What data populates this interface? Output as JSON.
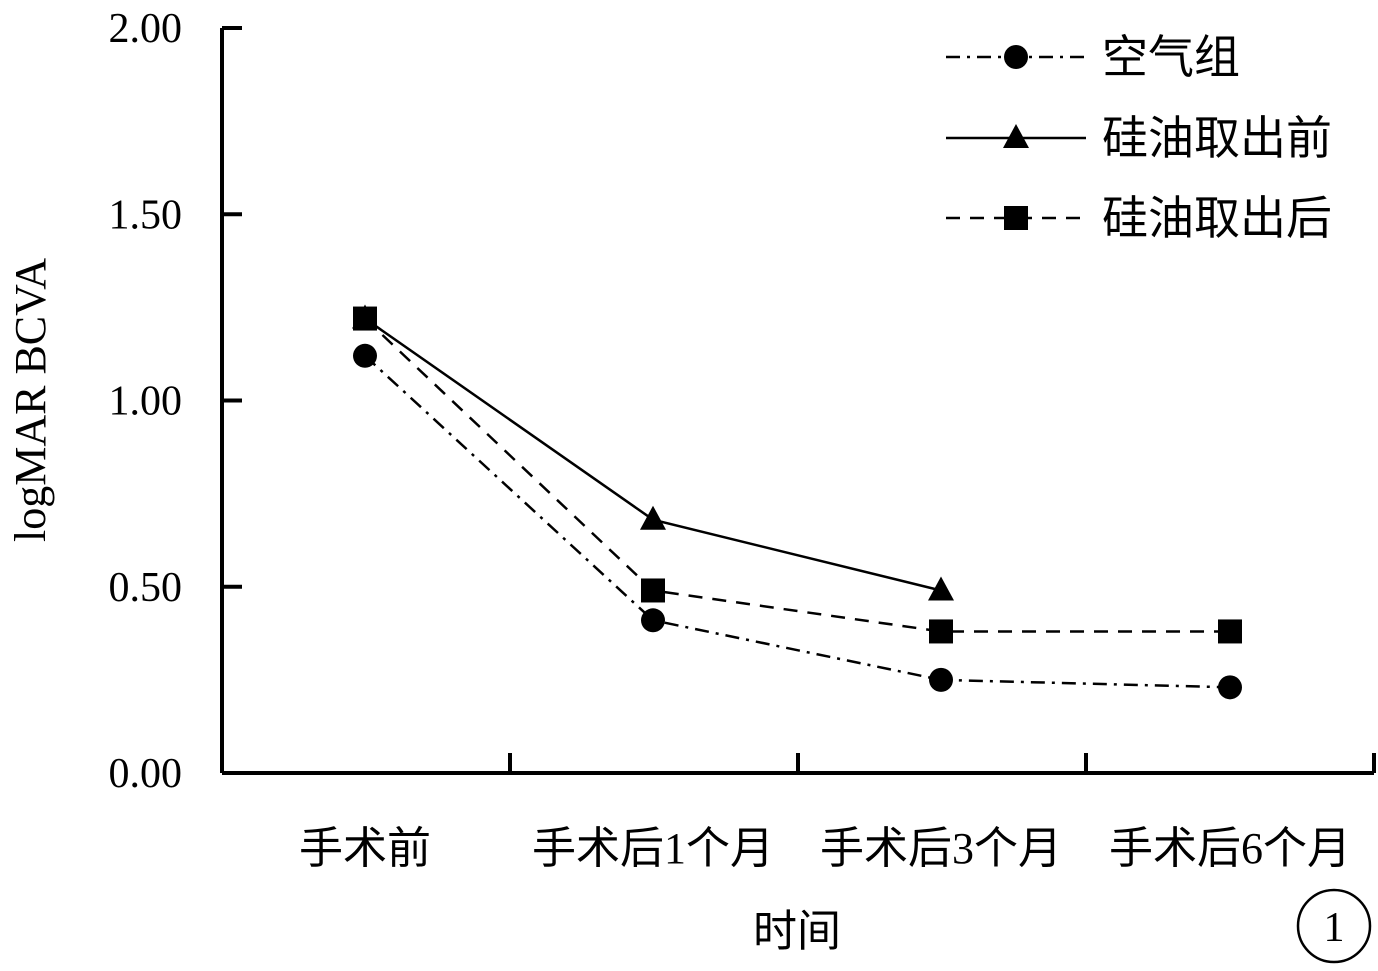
{
  "chart_data": {
    "type": "line",
    "categories": [
      "手术前",
      "手术后1个月",
      "手术后3个月",
      "手术后6个月"
    ],
    "xlabel": "时间",
    "ylabel": "logMAR  BCVA",
    "ylim": [
      0,
      2
    ],
    "yticks": [
      "0.00",
      "0.50",
      "1.00",
      "1.50",
      "2.00"
    ],
    "ytick_values": [
      0,
      0.5,
      1,
      1.5,
      2
    ],
    "grid": false,
    "legend_position": "top-right",
    "series": [
      {
        "name": "空气组",
        "marker": "circle",
        "dash": "dash-dot",
        "values": [
          1.12,
          0.41,
          0.25,
          0.23
        ]
      },
      {
        "name": "硅油取出前",
        "marker": "triangle",
        "dash": "solid",
        "values": [
          1.22,
          0.68,
          0.49,
          null
        ]
      },
      {
        "name": "硅油取出后",
        "marker": "square",
        "dash": "dashed",
        "values": [
          1.22,
          0.49,
          0.38,
          0.38
        ]
      }
    ],
    "panel_label": "1",
    "color": "#000000"
  }
}
